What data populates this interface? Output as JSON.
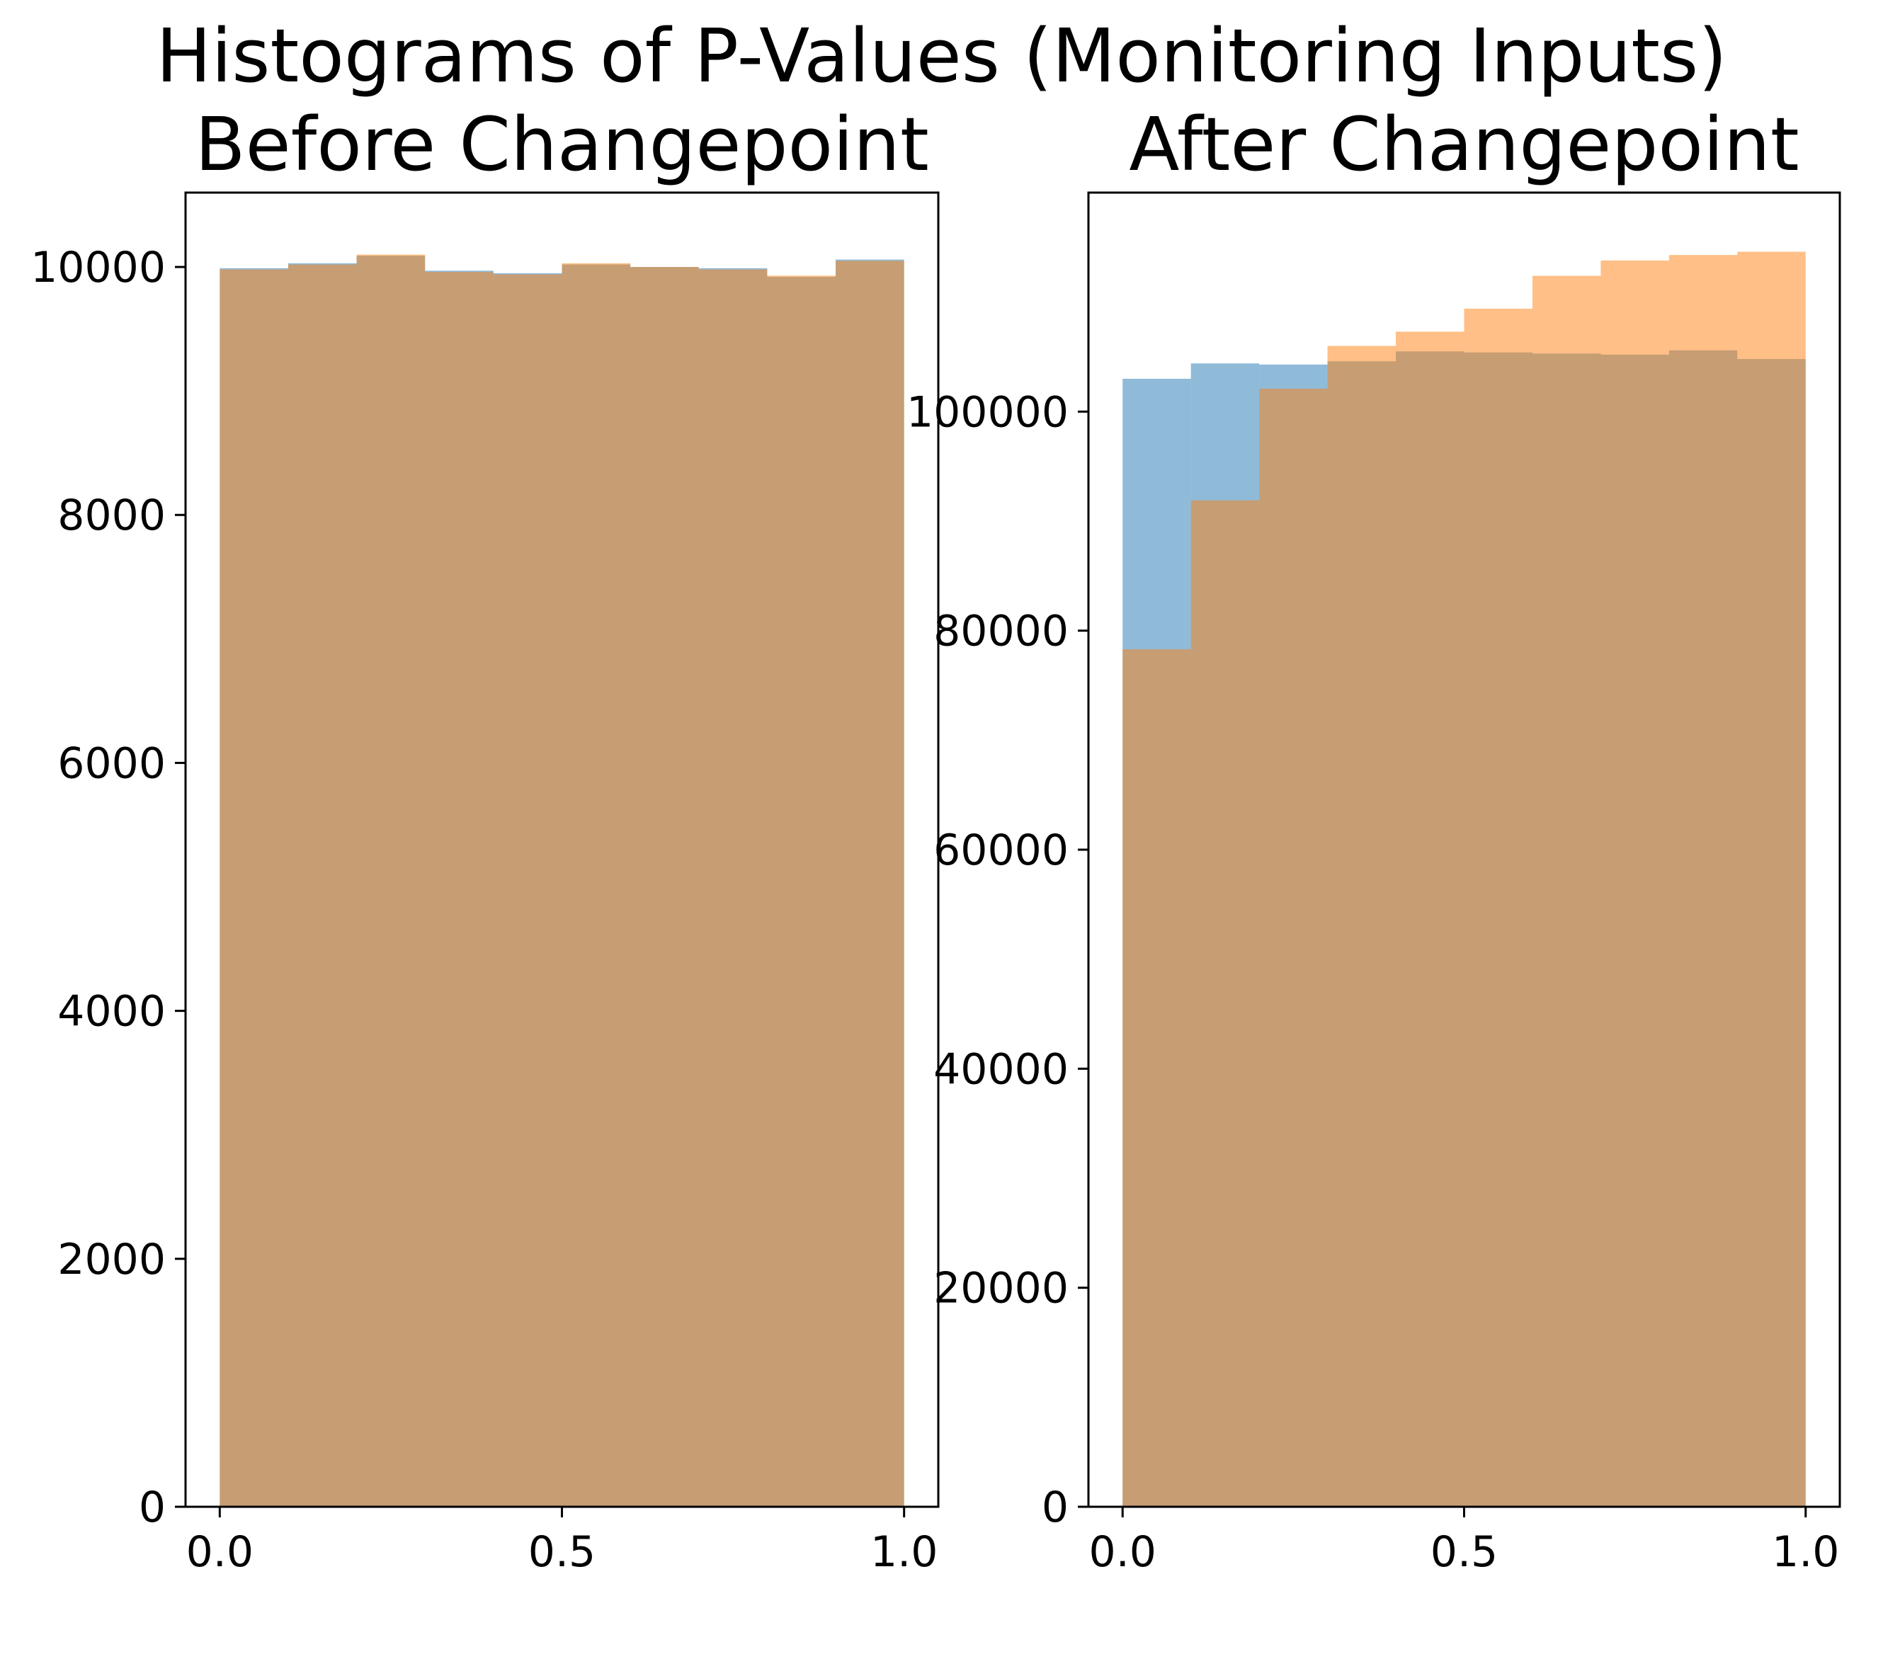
{
  "figure": {
    "title": "Histograms of P-Values (Monitoring Inputs)"
  },
  "colors": {
    "series_a": "#1f77b4",
    "series_b": "#ff7f0e",
    "bar_alpha": 0.5,
    "axis": "#000000",
    "background": "#ffffff"
  },
  "chart_data": [
    {
      "type": "bar",
      "title": "Before Changepoint",
      "xlabel": "",
      "ylabel": "",
      "bin_edges": [
        0.0,
        0.1,
        0.2,
        0.3,
        0.4,
        0.5,
        0.6,
        0.7,
        0.8,
        0.9,
        1.0
      ],
      "xlim": [
        -0.05,
        1.05
      ],
      "ylim": [
        0,
        10600
      ],
      "xticks": [
        0.0,
        0.5,
        1.0
      ],
      "xtick_labels": [
        "0.0",
        "0.5",
        "1.0"
      ],
      "yticks": [
        0,
        2000,
        4000,
        6000,
        8000,
        10000
      ],
      "ytick_labels": [
        "0",
        "2000",
        "4000",
        "6000",
        "8000",
        "10000"
      ],
      "grid": false,
      "series": [
        {
          "values": [
            9990,
            10030,
            10090,
            9970,
            9950,
            10020,
            10000,
            9990,
            9920,
            10060
          ]
        },
        {
          "values": [
            9980,
            10020,
            10100,
            9960,
            9940,
            10030,
            10000,
            9980,
            9930,
            10050
          ]
        }
      ]
    },
    {
      "type": "bar",
      "title": "After Changepoint",
      "xlabel": "",
      "ylabel": "",
      "bin_edges": [
        0.0,
        0.1,
        0.2,
        0.3,
        0.4,
        0.5,
        0.6,
        0.7,
        0.8,
        0.9,
        1.0
      ],
      "xlim": [
        -0.05,
        1.05
      ],
      "ylim": [
        0,
        120000
      ],
      "xticks": [
        0.0,
        0.5,
        1.0
      ],
      "xtick_labels": [
        "0.0",
        "0.5",
        "1.0"
      ],
      "yticks": [
        0,
        20000,
        40000,
        60000,
        80000,
        100000
      ],
      "ytick_labels": [
        "0",
        "20000",
        "40000",
        "60000",
        "80000",
        "100000"
      ],
      "grid": false,
      "series": [
        {
          "values": [
            103000,
            104400,
            104300,
            104600,
            105500,
            105400,
            105300,
            105200,
            105600,
            104800
          ]
        },
        {
          "values": [
            78300,
            91900,
            102100,
            106000,
            107300,
            109400,
            112400,
            113800,
            114300,
            114600
          ]
        }
      ]
    }
  ]
}
